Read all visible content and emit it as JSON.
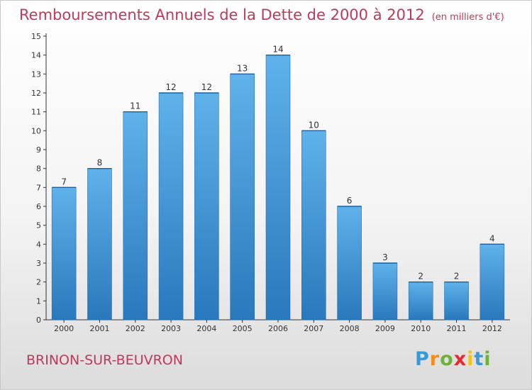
{
  "title": "Remboursements Annuels de la Dette de 2000 à 2012",
  "subtitle": "(en milliers d'€)",
  "commune": "BRINON-SUR-BEUVRON",
  "logo": {
    "letters": [
      "P",
      "r",
      "o",
      "x",
      "i",
      "t",
      "i"
    ],
    "colors": [
      "#3a9ad9",
      "#f28c1a",
      "#6bb33a",
      "#e8292f",
      "#f4c21b",
      "#3a9ad9",
      "#6bb33a"
    ]
  },
  "colors": {
    "bar": "#3d95d6",
    "bar_light": "#5fb2ea",
    "bar_dark": "#2a78bd",
    "title": "#c0395a",
    "axis": "#333333"
  },
  "chart_data": {
    "type": "bar",
    "title": "Remboursements Annuels de la Dette de 2000 à 2012",
    "subtitle": "(en milliers d'€)",
    "categories": [
      "2000",
      "2001",
      "2002",
      "2003",
      "2004",
      "2005",
      "2006",
      "2007",
      "2008",
      "2009",
      "2010",
      "2011",
      "2012"
    ],
    "values": [
      7,
      8,
      11,
      12,
      12,
      13,
      14,
      10,
      6,
      3,
      2,
      2,
      4
    ],
    "ylim": [
      0,
      15
    ],
    "yticks": [
      0,
      1,
      2,
      3,
      4,
      5,
      6,
      7,
      8,
      9,
      10,
      11,
      12,
      13,
      14,
      15
    ],
    "grid": false,
    "legend": "none"
  }
}
